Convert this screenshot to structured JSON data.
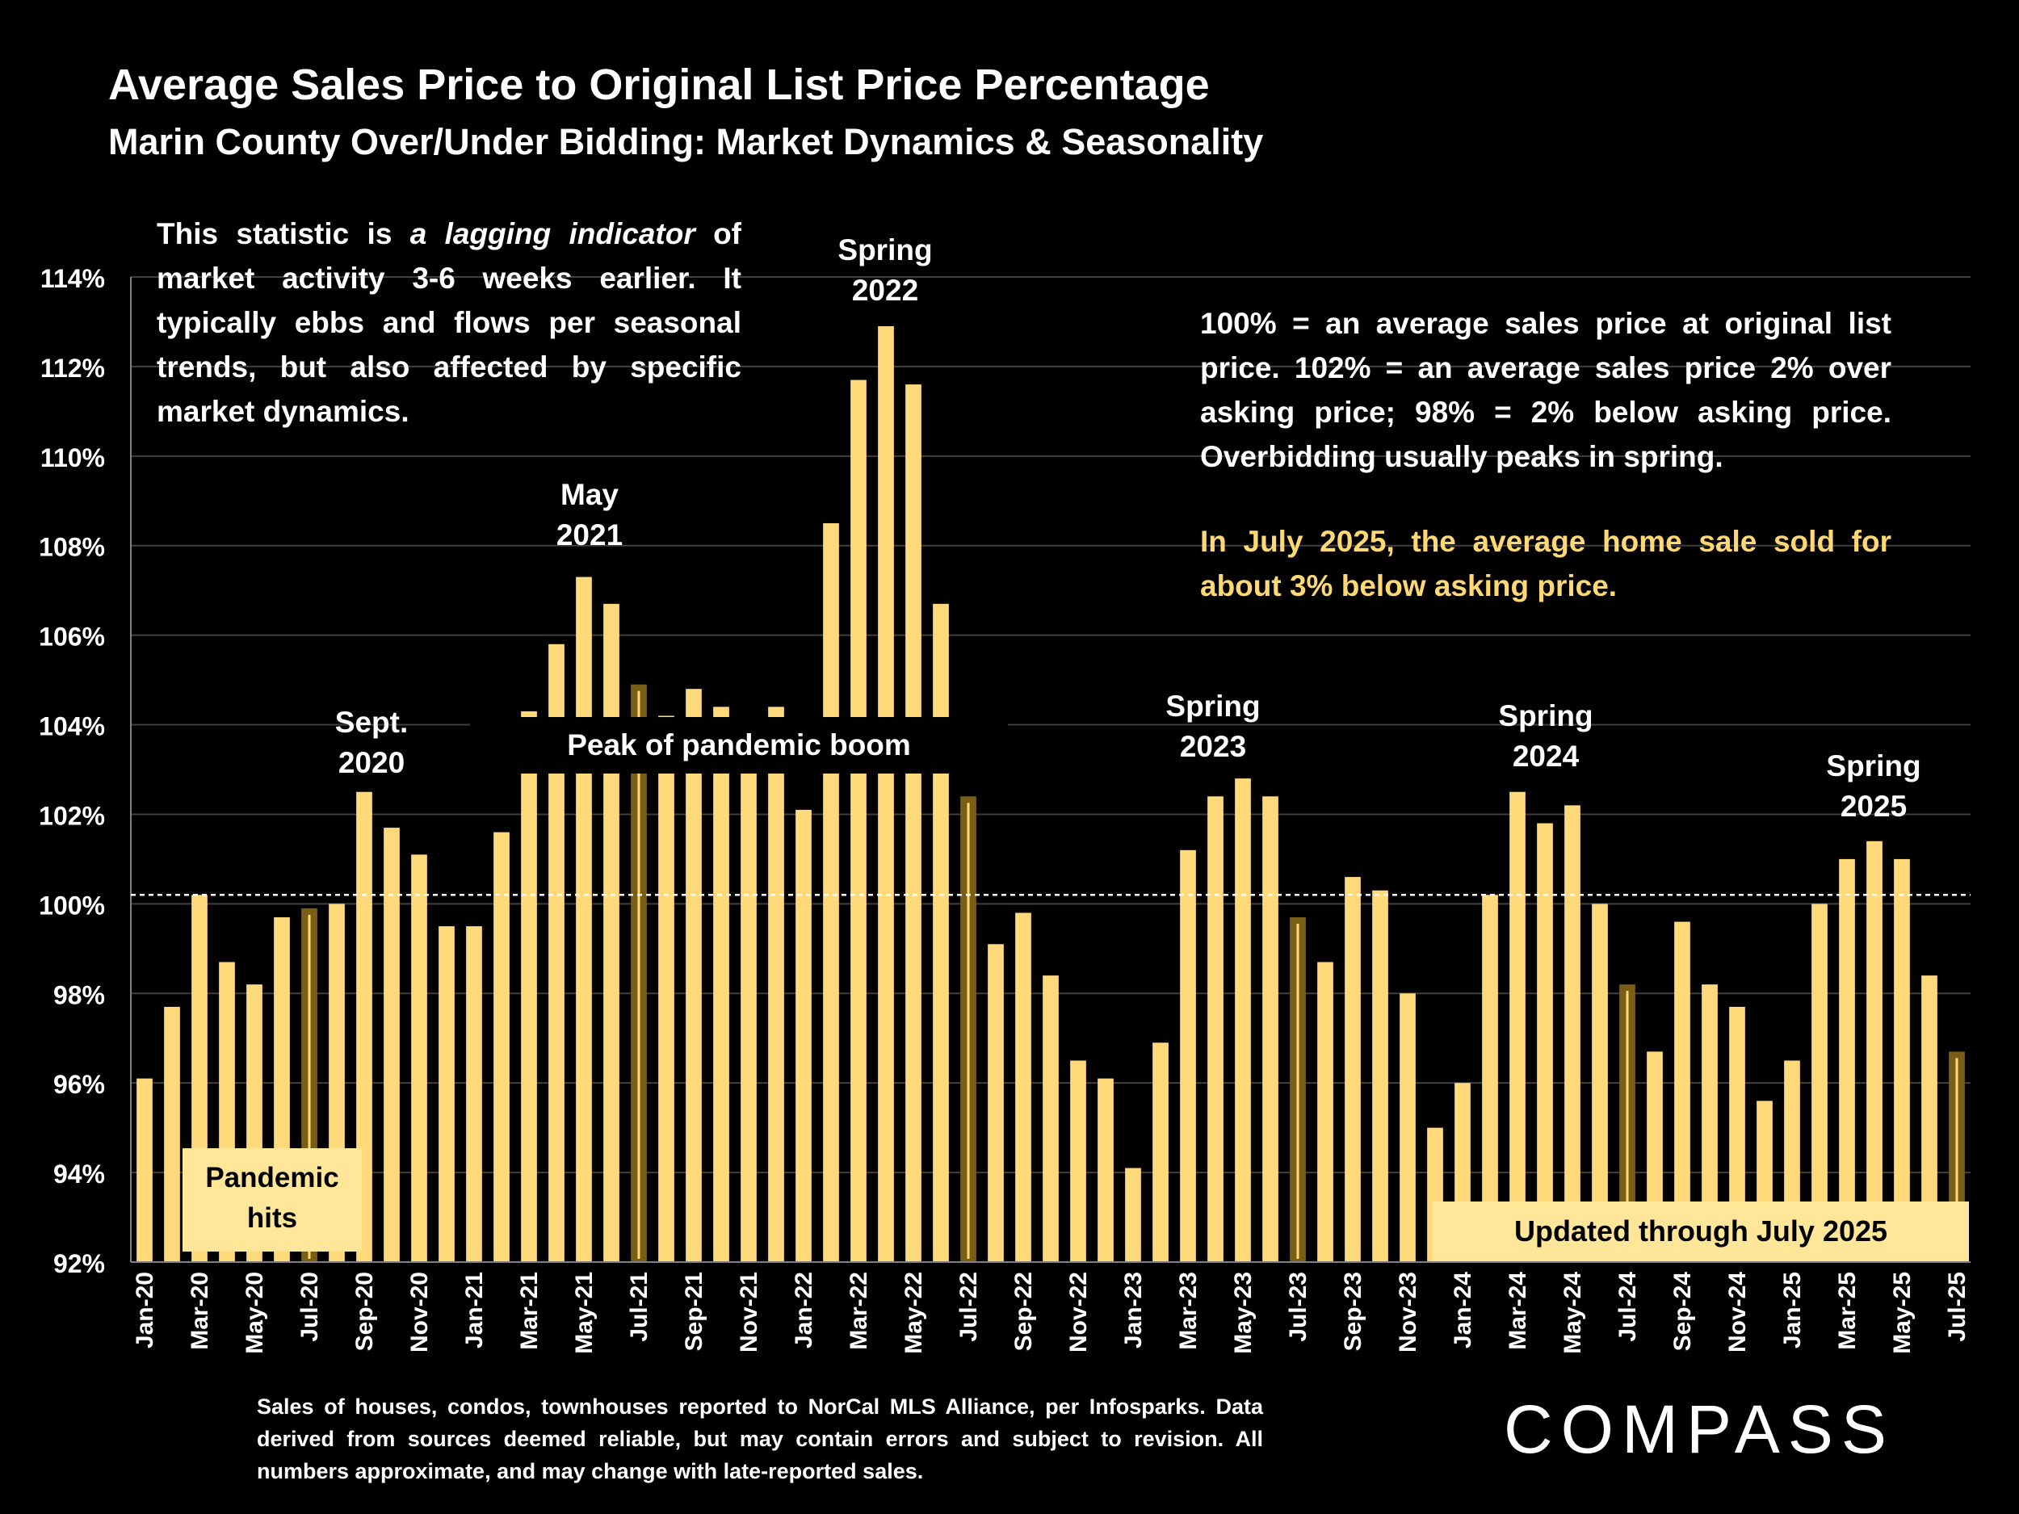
{
  "title": "Average Sales Price to Original List Price Percentage",
  "subtitle": "Marin County Over/Under Bidding: Market Dynamics & Seasonality",
  "note_left": {
    "part1": "This statistic is ",
    "emph": "a lagging indicator",
    "part2": " of market activity 3-6 weeks earlier. It typically ebbs and flows per seasonal trends, but also affected by specific market dynamics."
  },
  "note_right": {
    "text": "100% = an average sales price at original list price. 102% = an average sales price 2% over asking price; 98% = 2% below asking price. Overbidding usually peaks in spring.",
    "highlight": "In July 2025, the average home sale sold for about 3% below asking price."
  },
  "annotations": {
    "sept2020": [
      "Sept.",
      "2020"
    ],
    "may2021": [
      "May",
      "2021"
    ],
    "spring2022": [
      "Spring",
      "2022"
    ],
    "spring2023": [
      "Spring",
      "2023"
    ],
    "spring2024": [
      "Spring",
      "2024"
    ],
    "spring2025": [
      "Spring",
      "2025"
    ],
    "peak": "Peak of pandemic boom",
    "pandemic": [
      "Pandemic",
      "hits"
    ],
    "updated": "Updated through July 2025"
  },
  "footnote": "Sales of houses, condos, townhouses reported to NorCal MLS Alliance, per Infosparks. Data derived from sources deemed reliable, but may contain errors and subject to revision. All numbers approximate, and may change with late-reported sales.",
  "logo": "COMPASS",
  "colors": {
    "bar": "#ffd97a",
    "bar_highlight": "#7a5e16",
    "grid": "#404040",
    "reference_line": "#ffffff"
  },
  "chart_data": {
    "type": "bar",
    "ylim": [
      92,
      114
    ],
    "yticks": [
      "92%",
      "94%",
      "96%",
      "98%",
      "100%",
      "102%",
      "104%",
      "106%",
      "108%",
      "110%",
      "112%",
      "114%"
    ],
    "reference_line": 100.2,
    "grid": true,
    "categories": [
      "Jan-20",
      "Feb-20",
      "Mar-20",
      "Apr-20",
      "May-20",
      "Jun-20",
      "Jul-20",
      "Aug-20",
      "Sep-20",
      "Oct-20",
      "Nov-20",
      "Dec-20",
      "Jan-21",
      "Feb-21",
      "Mar-21",
      "Apr-21",
      "May-21",
      "Jun-21",
      "Jul-21",
      "Aug-21",
      "Sep-21",
      "Oct-21",
      "Nov-21",
      "Dec-21",
      "Jan-22",
      "Feb-22",
      "Mar-22",
      "Apr-22",
      "May-22",
      "Jun-22",
      "Jul-22",
      "Aug-22",
      "Sep-22",
      "Oct-22",
      "Nov-22",
      "Dec-22",
      "Jan-23",
      "Feb-23",
      "Mar-23",
      "Apr-23",
      "May-23",
      "Jun-23",
      "Jul-23",
      "Aug-23",
      "Sep-23",
      "Oct-23",
      "Nov-23",
      "Dec-23",
      "Jan-24",
      "Feb-24",
      "Mar-24",
      "Apr-24",
      "May-24",
      "Jun-24",
      "Jul-24",
      "Aug-24",
      "Sep-24",
      "Oct-24",
      "Nov-24",
      "Dec-24",
      "Jan-25",
      "Feb-25",
      "Mar-25",
      "Apr-25",
      "May-25",
      "Jun-25",
      "Jul-25"
    ],
    "values": [
      96.1,
      97.7,
      100.2,
      98.7,
      98.2,
      99.7,
      99.9,
      100.0,
      102.5,
      101.7,
      101.1,
      99.5,
      99.5,
      101.6,
      104.3,
      105.8,
      107.3,
      106.7,
      104.9,
      104.2,
      104.8,
      104.4,
      103.6,
      104.4,
      102.1,
      108.5,
      111.7,
      112.9,
      111.6,
      106.7,
      102.4,
      99.1,
      99.8,
      98.4,
      96.5,
      96.1,
      94.1,
      96.9,
      101.2,
      102.4,
      102.8,
      102.4,
      99.7,
      98.7,
      100.6,
      100.3,
      98.0,
      95.0,
      96.0,
      100.2,
      102.5,
      101.8,
      102.2,
      100.0,
      98.2,
      96.7,
      99.6,
      98.2,
      97.7,
      95.6,
      96.5,
      100.0,
      101.0,
      101.4,
      101.0,
      98.4,
      96.7
    ],
    "highlighted": [
      "Jul-20",
      "Jul-21",
      "Jul-22",
      "Jul-23",
      "Jul-24",
      "Jul-25"
    ],
    "xtick_labels": [
      "Jan-20",
      "Mar-20",
      "May-20",
      "Jul-20",
      "Sep-20",
      "Nov-20",
      "Jan-21",
      "Mar-21",
      "May-21",
      "Jul-21",
      "Sep-21",
      "Nov-21",
      "Jan-22",
      "Mar-22",
      "May-22",
      "Jul-22",
      "Sep-22",
      "Nov-22",
      "Jan-23",
      "Mar-23",
      "May-23",
      "Jul-23",
      "Sep-23",
      "Nov-23",
      "Jan-24",
      "Mar-24",
      "May-24",
      "Jul-24",
      "Sep-24",
      "Nov-24",
      "Jan-25",
      "Mar-25",
      "May-25",
      "Jul-25"
    ]
  }
}
